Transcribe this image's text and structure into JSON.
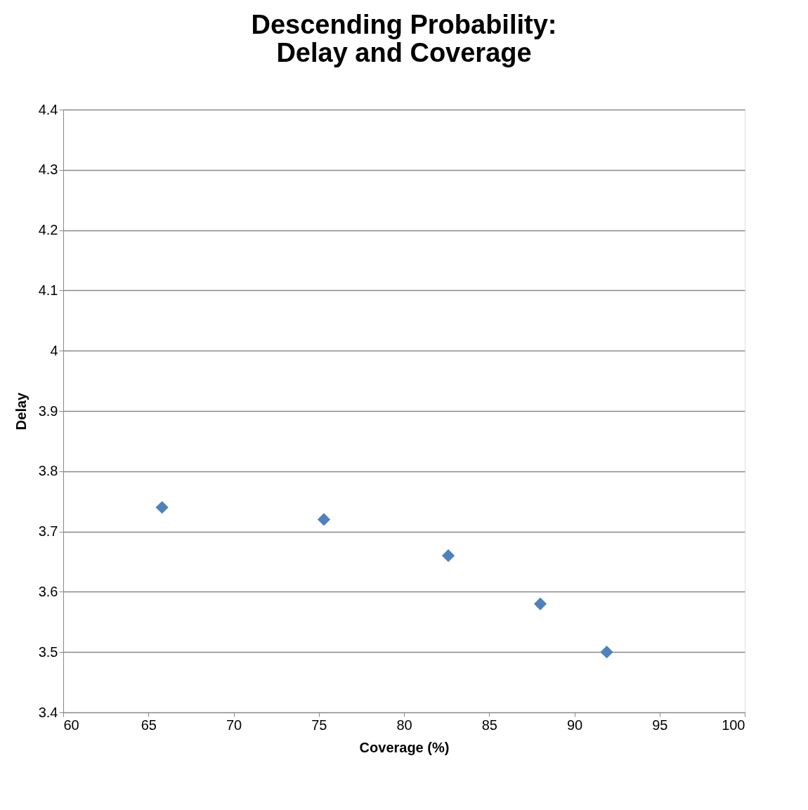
{
  "chart_data": {
    "type": "scatter",
    "title": [
      "Descending Probability:",
      "Delay and Coverage"
    ],
    "xlabel": "Coverage (%)",
    "ylabel": "Delay",
    "x": [
      65.8,
      75.3,
      82.6,
      88.0,
      91.9
    ],
    "series": [
      {
        "color": "#4f81bd",
        "values": [
          3.74,
          3.72,
          3.66,
          3.58,
          3.5
        ]
      }
    ],
    "xlim": [
      60,
      100
    ],
    "xticks": [
      60,
      65,
      70,
      75,
      80,
      85,
      90,
      95,
      100
    ],
    "ylim": [
      3.4,
      4.4
    ],
    "yticks": [
      3.4,
      3.5,
      3.6,
      3.7,
      3.8,
      3.9,
      {
        "value": 4.0,
        "label": "4"
      },
      4.1,
      4.2,
      4.3,
      4.4
    ],
    "grid": "y",
    "marker": "diamond",
    "legend": false
  }
}
